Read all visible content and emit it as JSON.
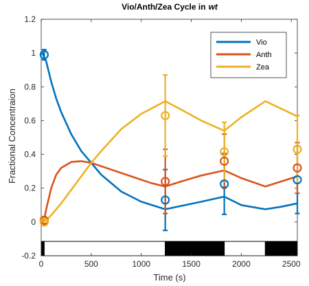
{
  "chart_data": {
    "type": "line",
    "title": "Vio/Anth/Zea Cycle in",
    "title_italic": "wt",
    "xlabel": "Time (s)",
    "ylabel": "Fractional Concentraion",
    "xlim": [
      0,
      2560
    ],
    "ylim": [
      -0.2,
      1.2
    ],
    "xticks": [
      0,
      500,
      1000,
      1500,
      2000,
      2500
    ],
    "yticks": [
      -0.2,
      0,
      0.2,
      0.4,
      0.6,
      0.8,
      1,
      1.2
    ],
    "ytick_labels": [
      "-0.2",
      "0",
      "0.2",
      "0.4",
      "0.6",
      "0.8",
      "1",
      "1.2"
    ],
    "legend_position": "top-right",
    "light_bar": {
      "segments": [
        {
          "start": 0,
          "end": 30,
          "state": "dark"
        },
        {
          "start": 30,
          "end": 1240,
          "state": "light"
        },
        {
          "start": 1240,
          "end": 1830,
          "state": "dark"
        },
        {
          "start": 1830,
          "end": 2240,
          "state": "light"
        },
        {
          "start": 2240,
          "end": 2560,
          "state": "dark"
        }
      ]
    },
    "series": [
      {
        "name": "Vio",
        "color": "#0072BD",
        "model_x": [
          10,
          50,
          100,
          150,
          200,
          300,
          400,
          500,
          600,
          800,
          1000,
          1240,
          1400,
          1600,
          1830,
          2000,
          2240,
          2400,
          2560
        ],
        "model_y": [
          1.0,
          0.95,
          0.83,
          0.73,
          0.65,
          0.52,
          0.42,
          0.35,
          0.28,
          0.18,
          0.12,
          0.075,
          0.095,
          0.12,
          0.15,
          0.1,
          0.075,
          0.09,
          0.11
        ],
        "points": [
          {
            "x": 30,
            "y": 0.99,
            "err": 0.03
          },
          {
            "x": 1240,
            "y": 0.13,
            "err": 0.18
          },
          {
            "x": 1830,
            "y": 0.225,
            "err": 0.18
          },
          {
            "x": 2560,
            "y": 0.25,
            "err": 0.2
          }
        ]
      },
      {
        "name": "Anth",
        "color": "#D95319",
        "model_x": [
          10,
          30,
          60,
          100,
          150,
          200,
          300,
          400,
          500,
          700,
          900,
          1100,
          1240,
          1400,
          1600,
          1830,
          2000,
          2240,
          2400,
          2560
        ],
        "model_y": [
          0.0,
          0.02,
          0.1,
          0.2,
          0.28,
          0.32,
          0.355,
          0.36,
          0.35,
          0.31,
          0.27,
          0.23,
          0.21,
          0.24,
          0.275,
          0.305,
          0.26,
          0.21,
          0.24,
          0.27
        ],
        "points": [
          {
            "x": 30,
            "y": 0.01,
            "err": 0.02
          },
          {
            "x": 1240,
            "y": 0.24,
            "err": 0.19
          },
          {
            "x": 1830,
            "y": 0.36,
            "err": 0.16
          },
          {
            "x": 2560,
            "y": 0.32,
            "err": 0.15
          }
        ]
      },
      {
        "name": "Zea",
        "color": "#EDB120",
        "model_x": [
          10,
          50,
          100,
          200,
          300,
          400,
          500,
          600,
          800,
          1000,
          1240,
          1400,
          1600,
          1830,
          2000,
          2240,
          2400,
          2560
        ],
        "model_y": [
          0.0,
          0.01,
          0.04,
          0.11,
          0.19,
          0.27,
          0.35,
          0.42,
          0.55,
          0.64,
          0.715,
          0.665,
          0.6,
          0.54,
          0.62,
          0.715,
          0.67,
          0.625
        ],
        "points": [
          {
            "x": 30,
            "y": 0.0,
            "err": 0.02
          },
          {
            "x": 1240,
            "y": 0.63,
            "err": 0.24
          },
          {
            "x": 1830,
            "y": 0.415,
            "err": 0.175
          },
          {
            "x": 2560,
            "y": 0.43,
            "err": 0.2
          }
        ]
      }
    ]
  }
}
